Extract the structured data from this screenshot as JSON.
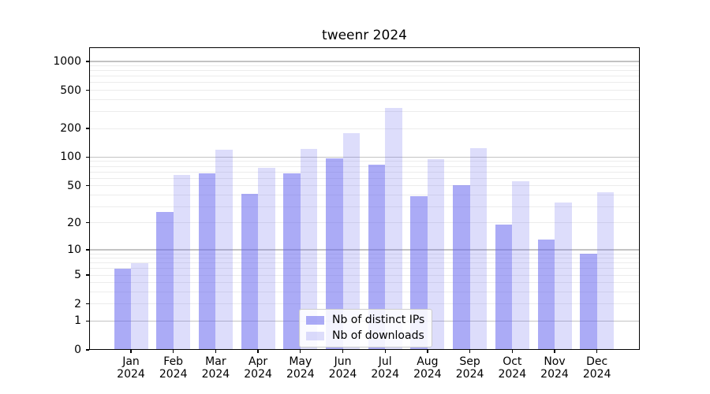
{
  "title": "tweenr 2024",
  "chart_data": {
    "type": "bar",
    "title": "tweenr 2024",
    "y_scale": "log1p",
    "x_tick_year": "2024",
    "categories": [
      "Jan 2024",
      "Feb 2024",
      "Mar 2024",
      "Apr 2024",
      "May 2024",
      "Jun 2024",
      "Jul 2024",
      "Aug 2024",
      "Sep 2024",
      "Oct 2024",
      "Nov 2024",
      "Dec 2024"
    ],
    "months": [
      "Jan",
      "Feb",
      "Mar",
      "Apr",
      "May",
      "Jun",
      "Jul",
      "Aug",
      "Sep",
      "Oct",
      "Nov",
      "Dec"
    ],
    "series": [
      {
        "name": "Nb of distinct IPs",
        "color": "rgba(102,102,238,0.55)",
        "values": [
          6,
          26,
          67,
          41,
          68,
          98,
          84,
          39,
          51,
          19,
          13,
          9
        ]
      },
      {
        "name": "Nb of downloads",
        "color": "rgba(102,102,238,0.22)",
        "values": [
          7,
          65,
          120,
          77,
          122,
          178,
          327,
          95,
          124,
          56,
          33,
          43
        ]
      }
    ],
    "y_axis": {
      "tick_values": [
        0,
        1,
        2,
        5,
        10,
        20,
        50,
        100,
        200,
        500,
        1000
      ],
      "major_grid_values": [
        1,
        10,
        100,
        1000
      ],
      "minor_grid_values": [
        2,
        3,
        4,
        5,
        6,
        7,
        8,
        9,
        20,
        30,
        40,
        50,
        60,
        70,
        80,
        90,
        200,
        300,
        400,
        500,
        600,
        700,
        800,
        900
      ],
      "range": [
        0,
        1400
      ],
      "grid": true
    },
    "legend": {
      "position": "lower-center",
      "entries": [
        "Nb of distinct IPs",
        "Nb of downloads"
      ]
    }
  },
  "colors": {
    "major_grid": "#c3c3c3",
    "minor_grid": "#ececec",
    "spine": "#000000",
    "legend_border": "#cccccc",
    "legend_bg": "rgba(255,255,255,0.85)",
    "bar_ips": "rgba(102,102,238,0.55)",
    "bar_downloads": "rgba(102,102,238,0.22)"
  }
}
